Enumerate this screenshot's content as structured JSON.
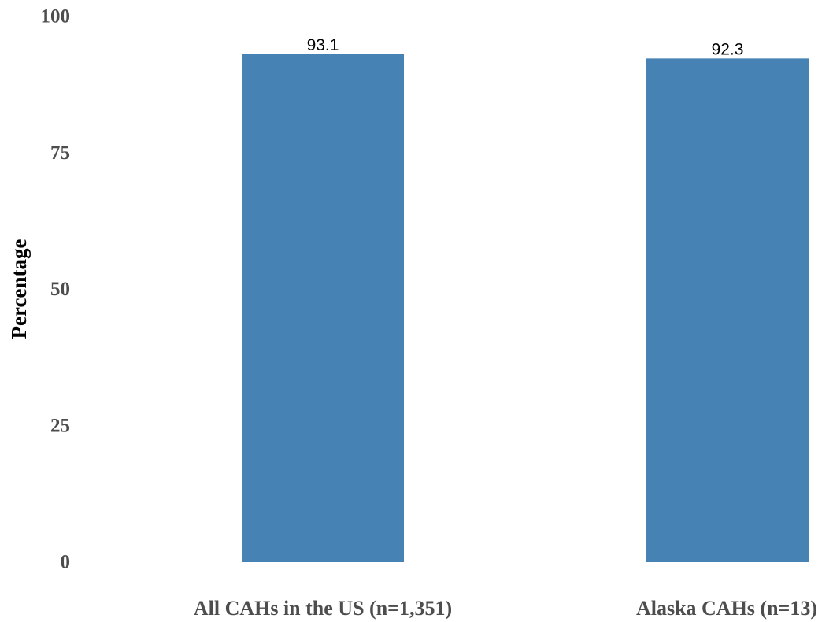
{
  "chart_data": {
    "type": "bar",
    "categories": [
      "All CAHs in the US (n=1,351)",
      "Alaska CAHs (n=13)"
    ],
    "values": [
      93.1,
      92.3
    ],
    "data_labels": [
      "93.1",
      "92.3"
    ],
    "title": "",
    "xlabel": "",
    "ylabel": "Percentage",
    "ylim": [
      0,
      100
    ],
    "yticks": [
      0,
      25,
      50,
      75,
      100
    ],
    "ytick_labels": [
      "0",
      "25",
      "50",
      "75",
      "100"
    ],
    "grid": false,
    "bar_color": "#4682b4"
  }
}
